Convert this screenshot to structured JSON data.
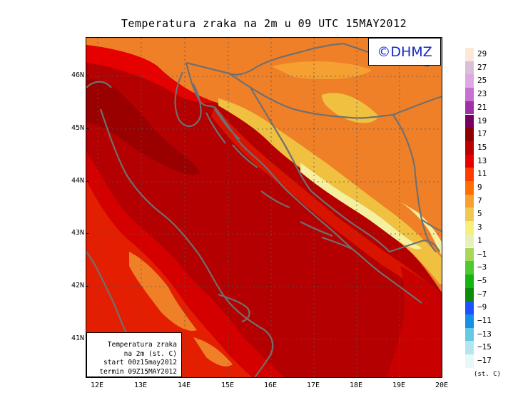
{
  "title": "Temperatura zraka na 2m u 09 UTC 15MAY2012",
  "copyright": "©DHMZ",
  "info_box": {
    "line1": "Temperatura zraka",
    "line2": "na 2m (st. C)",
    "line3": "start 00z15may2012",
    "line4": "termin 09Z15MAY2012"
  },
  "axes": {
    "lat_labels": [
      "46N",
      "45N",
      "44N",
      "43N",
      "42N",
      "41N"
    ],
    "lon_labels": [
      "12E",
      "13E",
      "14E",
      "15E",
      "16E",
      "17E",
      "18E",
      "19E",
      "20E"
    ]
  },
  "legend": {
    "unit": "(st. C)",
    "levels": [
      "29",
      "27",
      "25",
      "23",
      "21",
      "19",
      "17",
      "15",
      "13",
      "11",
      "9",
      "7",
      "5",
      "3",
      "1",
      "−1",
      "−3",
      "−5",
      "−7",
      "−9",
      "−11",
      "−13",
      "−15",
      "−17"
    ],
    "colors": [
      "#fde8d8",
      "#d8c0d8",
      "#e0a8e0",
      "#c870d0",
      "#a030a8",
      "#7a0060",
      "#8c0000",
      "#bb0000",
      "#e60000",
      "#ff3c00",
      "#ff6e00",
      "#f5a030",
      "#f0c850",
      "#f5f07a",
      "#e6f0b8",
      "#a8d858",
      "#50c830",
      "#14b414",
      "#0a8c0a",
      "#1e50ff",
      "#1490e6",
      "#64c8e6",
      "#b4e6f0",
      "#e6f8fa"
    ]
  },
  "map_colors": {
    "sea": "#b40000",
    "coast_band": "#e60000",
    "inland": "#f08028",
    "mountain": "#f0c040",
    "high_peak": "#f5f0a0",
    "borders": "#707070"
  }
}
